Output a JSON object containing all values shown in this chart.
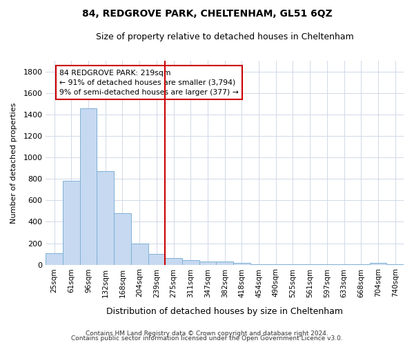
{
  "title": "84, REDGROVE PARK, CHELTENHAM, GL51 6QZ",
  "subtitle": "Size of property relative to detached houses in Cheltenham",
  "xlabel": "Distribution of detached houses by size in Cheltenham",
  "ylabel": "Number of detached properties",
  "categories": [
    "25sqm",
    "61sqm",
    "96sqm",
    "132sqm",
    "168sqm",
    "204sqm",
    "239sqm",
    "275sqm",
    "311sqm",
    "347sqm",
    "382sqm",
    "418sqm",
    "454sqm",
    "490sqm",
    "525sqm",
    "561sqm",
    "597sqm",
    "633sqm",
    "668sqm",
    "704sqm",
    "740sqm"
  ],
  "values": [
    110,
    780,
    1460,
    870,
    480,
    200,
    100,
    65,
    42,
    30,
    27,
    20,
    5,
    5,
    5,
    5,
    5,
    5,
    5,
    15,
    5
  ],
  "bar_color": "#c6d9f1",
  "bar_edge_color": "#7eb0d5",
  "vline_color": "#cc0000",
  "vline_position": 6.5,
  "annotation_line1": "84 REDGROVE PARK: 219sqm",
  "annotation_line2": "← 91% of detached houses are smaller (3,794)",
  "annotation_line3": "9% of semi-detached houses are larger (377) →",
  "ylim": [
    0,
    1900
  ],
  "yticks": [
    0,
    200,
    400,
    600,
    800,
    1000,
    1200,
    1400,
    1600,
    1800
  ],
  "footer_line1": "Contains HM Land Registry data © Crown copyright and database right 2024.",
  "footer_line2": "Contains public sector information licensed under the Open Government Licence v3.0.",
  "background_color": "#ffffff",
  "grid_color": "#d0d8e8",
  "title_fontsize": 10,
  "subtitle_fontsize": 9
}
